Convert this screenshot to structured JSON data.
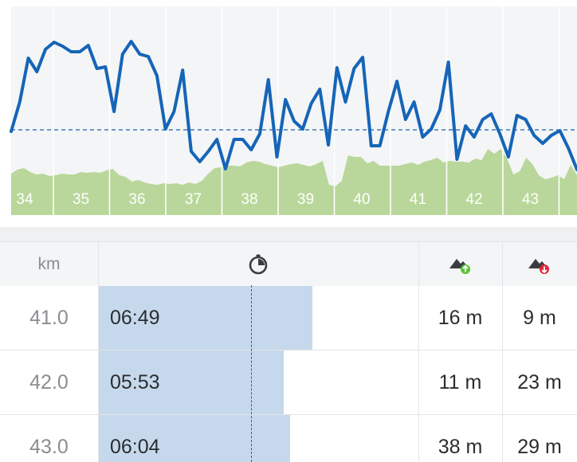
{
  "chart_data": {
    "type": "line",
    "x_ticks": [
      "34",
      "35",
      "36",
      "37",
      "38",
      "39",
      "40",
      "41",
      "42",
      "43"
    ],
    "pace_series": [
      165,
      128,
      73,
      90,
      62,
      53,
      58,
      65,
      65,
      57,
      86,
      84,
      140,
      68,
      52,
      68,
      71,
      95,
      162,
      140,
      88,
      190,
      203,
      190,
      175,
      212,
      175,
      175,
      188,
      168,
      100,
      197,
      125,
      152,
      162,
      130,
      112,
      182,
      85,
      128,
      86,
      72,
      183,
      183,
      140,
      102,
      150,
      128,
      172,
      162,
      138,
      78,
      200,
      158,
      172,
      150,
      143,
      168,
      197,
      145,
      150,
      170,
      180,
      170,
      164,
      186,
      213
    ],
    "elevation_series": [
      218,
      213,
      211,
      216,
      219,
      218,
      221,
      220,
      218,
      219,
      219,
      216,
      217,
      216,
      217,
      214,
      212,
      220,
      222,
      228,
      226,
      229,
      231,
      232,
      230,
      231,
      230,
      232,
      229,
      231,
      227,
      218,
      211,
      210,
      208,
      208,
      209,
      204,
      202,
      203,
      206,
      208,
      210,
      208,
      206,
      205,
      207,
      209,
      206,
      202,
      232,
      234,
      227,
      195,
      197,
      197,
      205,
      202,
      208,
      208,
      208,
      208,
      206,
      204,
      207,
      203,
      201,
      198,
      204,
      202,
      203,
      203,
      204,
      199,
      201,
      187,
      193,
      187,
      199,
      219,
      215,
      198,
      206,
      220,
      225,
      223,
      220,
      225,
      207,
      220
    ],
    "average_pace_guide": "dashed",
    "grid": true
  },
  "table": {
    "headers": {
      "km": "km",
      "pace_icon": "stopwatch-icon",
      "ascent_icon": "ascent-icon",
      "descent_icon": "descent-icon"
    },
    "rows": [
      {
        "km": "41.0",
        "pace": "06:49",
        "pace_fraction": 0.67,
        "ascent": "16 m",
        "descent": "9 m"
      },
      {
        "km": "42.0",
        "pace": "05:53",
        "pace_fraction": 0.58,
        "ascent": "11 m",
        "descent": "23 m"
      },
      {
        "km": "43.0",
        "pace": "06:04",
        "pace_fraction": 0.6,
        "ascent": "38 m",
        "descent": "29 m"
      }
    ]
  },
  "colors": {
    "pace_line": "#1565b8",
    "elevation_fill": "#b9d79a",
    "pace_bar": "#c6d9ec",
    "ascent_badge": "#5cc13a",
    "descent_badge": "#e0263a"
  }
}
